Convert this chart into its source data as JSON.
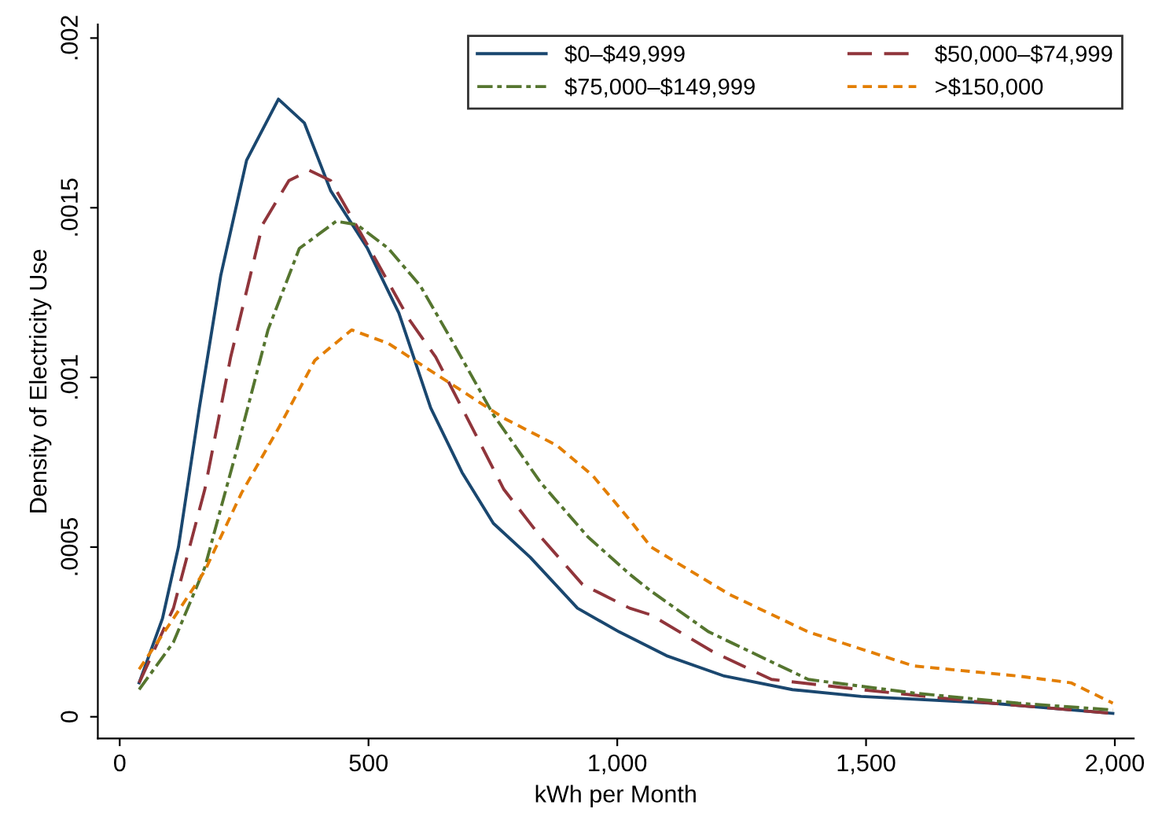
{
  "chart_data": {
    "type": "line",
    "xlabel": "kWh per Month",
    "ylabel": "Density of Electricity Use",
    "xlim": [
      -44,
      2038
    ],
    "ylim": [
      -6.4e-05,
      0.00204
    ],
    "xticks": [
      0,
      500,
      {
        "value": 1000,
        "label": "1,000"
      },
      {
        "value": 1500,
        "label": "1,500"
      },
      {
        "value": 2000,
        "label": "2,000"
      }
    ],
    "yticks": [
      0,
      {
        "value": 0.0005,
        "label": ".0005"
      },
      {
        "value": 0.001,
        "label": ".001"
      },
      {
        "value": 0.0015,
        "label": ".0015"
      },
      {
        "value": 0.002,
        "label": ".002"
      }
    ],
    "grid": false,
    "legend": "top right",
    "marker": "none",
    "series": [
      {
        "name": "$0–$49,999",
        "color": "#1a476f",
        "line_style": "solid",
        "x": [
          39,
          86,
          118,
          160,
          203,
          255,
          319,
          371,
          424,
          498,
          561,
          625,
          688,
          751,
          825,
          920,
          1004,
          1099,
          1215,
          1352,
          1490,
          1753,
          1996
        ],
        "values": [
          0.0001,
          0.00029,
          0.0005,
          0.00091,
          0.0013,
          0.00164,
          0.00182,
          0.00175,
          0.00155,
          0.00138,
          0.00119,
          0.00091,
          0.00072,
          0.00057,
          0.00047,
          0.00032,
          0.00025,
          0.00018,
          0.00012,
          8e-05,
          6e-05,
          4e-05,
          1e-05
        ]
      },
      {
        "name": "$50,000–$74,999",
        "color": "#90353b",
        "line_style": "dashed",
        "x": [
          39,
          108,
          171,
          223,
          287,
          340,
          381,
          424,
          498,
          582,
          635,
          709,
          772,
          846,
          930,
          1025,
          1068,
          1194,
          1310,
          1490,
          1753,
          1996
        ],
        "values": [
          0.0001,
          0.00032,
          0.00067,
          0.00106,
          0.00145,
          0.00158,
          0.00161,
          0.00158,
          0.00139,
          0.00117,
          0.00106,
          0.00085,
          0.00067,
          0.00053,
          0.00039,
          0.00032,
          0.0003,
          0.00019,
          0.00011,
          8e-05,
          4e-05,
          1e-05
        ]
      },
      {
        "name": "$75,000–$149,999",
        "color": "#55752f",
        "line_style": "dashdot",
        "x": [
          39,
          108,
          171,
          234,
          298,
          361,
          435,
          477,
          540,
          604,
          667,
          751,
          846,
          941,
          1025,
          1068,
          1184,
          1384,
          1595,
          1806,
          1996
        ],
        "values": [
          8e-05,
          0.00022,
          0.00044,
          0.00078,
          0.00114,
          0.00138,
          0.00146,
          0.00145,
          0.00138,
          0.00127,
          0.00111,
          0.00089,
          0.00069,
          0.00053,
          0.00042,
          0.00037,
          0.00025,
          0.00011,
          7e-05,
          4e-05,
          2e-05
        ]
      },
      {
        "name": ">$150,000",
        "color": "#e37e00",
        "line_style": "dotted",
        "x": [
          39,
          108,
          171,
          245,
          319,
          392,
          466,
          540,
          667,
          772,
          878,
          951,
          1025,
          1068,
          1226,
          1384,
          1595,
          1806,
          1912,
          1996
        ],
        "values": [
          0.00014,
          0.00029,
          0.00043,
          0.00066,
          0.00085,
          0.00105,
          0.00114,
          0.0011,
          0.00098,
          0.00088,
          0.0008,
          0.00071,
          0.00058,
          0.0005,
          0.00036,
          0.00025,
          0.00015,
          0.00012,
          0.0001,
          4e-05
        ]
      }
    ]
  }
}
